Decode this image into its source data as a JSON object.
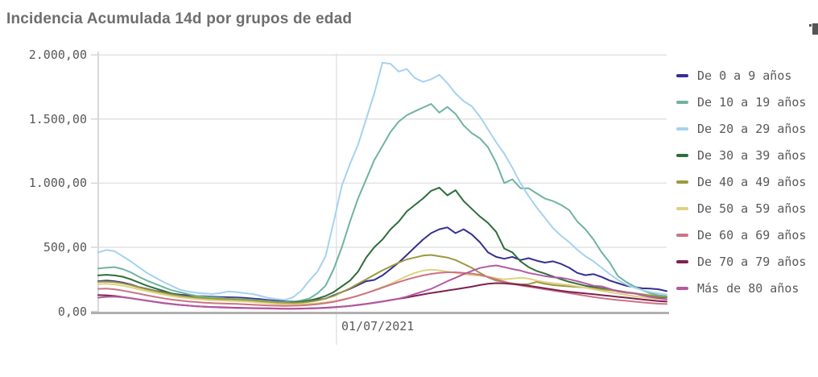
{
  "title": "Incidencia Acumulada 14d por grupos de edad",
  "toolbar": {
    "overflow_icon": "chart-options-icon"
  },
  "colors": {
    "title_text": "#6e6e6e",
    "axis_text": "#595959",
    "grid_line": "#e1e1e1",
    "axis_line": "#d8d8d8",
    "baseline": "#b0b0b0",
    "background": "#ffffff"
  },
  "chart_data": {
    "type": "line",
    "title": "Incidencia Acumulada 14d por grupos de edad",
    "xlabel": "",
    "ylabel": "",
    "ylim": [
      0,
      2000
    ],
    "grid": true,
    "legend_position": "right",
    "y_ticks": [
      {
        "label": "2.000,00",
        "value": 2000
      },
      {
        "label": "1.500,00",
        "value": 1500
      },
      {
        "label": "1.000,00",
        "value": 1000
      },
      {
        "label": "500,00",
        "value": 500
      },
      {
        "label": "0,00",
        "value": 0
      }
    ],
    "x_axis": {
      "tick_label": "01/07/2021",
      "tick_fraction": 0.419
    },
    "x_tick_labels": [
      "01/07/2021"
    ],
    "series": [
      {
        "name": "De 0 a 9 años",
        "color": "#352f8f",
        "values": [
          235,
          240,
          235,
          225,
          210,
          190,
          175,
          160,
          150,
          140,
          130,
          125,
          120,
          118,
          115,
          112,
          110,
          108,
          105,
          100,
          95,
          88,
          82,
          78,
          76,
          78,
          82,
          90,
          100,
          125,
          150,
          175,
          205,
          235,
          245,
          280,
          330,
          380,
          440,
          500,
          560,
          610,
          640,
          655,
          610,
          640,
          600,
          540,
          460,
          425,
          410,
          425,
          400,
          415,
          395,
          380,
          390,
          370,
          340,
          300,
          282,
          290,
          268,
          240,
          220,
          200,
          190,
          180,
          178,
          172,
          158
        ]
      },
      {
        "name": "De 10 a 19 años",
        "color": "#6fb3a2",
        "values": [
          335,
          340,
          345,
          330,
          305,
          270,
          240,
          215,
          190,
          165,
          150,
          135,
          122,
          115,
          110,
          105,
          100,
          100,
          95,
          90,
          85,
          80,
          75,
          72,
          75,
          85,
          100,
          140,
          200,
          330,
          500,
          700,
          880,
          1030,
          1180,
          1290,
          1400,
          1480,
          1530,
          1560,
          1590,
          1618,
          1550,
          1595,
          1540,
          1450,
          1390,
          1350,
          1280,
          1160,
          1000,
          1030,
          960,
          960,
          920,
          880,
          860,
          830,
          790,
          700,
          640,
          560,
          460,
          380,
          275,
          230,
          195,
          165,
          140,
          125,
          118
        ]
      },
      {
        "name": "De 20 a 29 años",
        "color": "#a5d2ee",
        "values": [
          460,
          478,
          470,
          430,
          390,
          345,
          300,
          265,
          230,
          200,
          170,
          155,
          145,
          140,
          135,
          142,
          155,
          150,
          142,
          135,
          120,
          105,
          95,
          90,
          110,
          160,
          240,
          310,
          430,
          700,
          980,
          1150,
          1300,
          1500,
          1700,
          1940,
          1930,
          1870,
          1890,
          1820,
          1790,
          1810,
          1845,
          1780,
          1700,
          1640,
          1600,
          1520,
          1420,
          1320,
          1230,
          1120,
          1000,
          900,
          810,
          730,
          650,
          590,
          540,
          480,
          430,
          390,
          340,
          290,
          245,
          210,
          185,
          165,
          150,
          140,
          130
        ]
      },
      {
        "name": "De 30 a 39 años",
        "color": "#2e6e3a",
        "values": [
          280,
          285,
          280,
          270,
          250,
          225,
          200,
          180,
          160,
          140,
          125,
          115,
          105,
          100,
          95,
          95,
          90,
          90,
          85,
          80,
          75,
          70,
          68,
          65,
          70,
          75,
          85,
          100,
          120,
          150,
          195,
          240,
          310,
          420,
          500,
          560,
          640,
          700,
          780,
          830,
          880,
          940,
          965,
          905,
          945,
          860,
          800,
          740,
          690,
          620,
          490,
          460,
          390,
          345,
          315,
          295,
          272,
          250,
          230,
          215,
          200,
          190,
          180,
          170,
          160,
          150,
          140,
          130,
          120,
          112,
          108
        ]
      },
      {
        "name": "De 40 a 49 años",
        "color": "#9a993f",
        "values": [
          230,
          232,
          228,
          218,
          205,
          188,
          172,
          158,
          145,
          132,
          122,
          115,
          110,
          105,
          100,
          98,
          95,
          92,
          90,
          85,
          80,
          75,
          70,
          66,
          65,
          68,
          75,
          85,
          100,
          120,
          150,
          180,
          215,
          250,
          285,
          320,
          350,
          380,
          405,
          420,
          435,
          440,
          430,
          420,
          400,
          370,
          340,
          300,
          265,
          240,
          228,
          218,
          210,
          212,
          230,
          215,
          205,
          200,
          195,
          190,
          185,
          180,
          172,
          165,
          158,
          150,
          142,
          133,
          125,
          118,
          112
        ]
      },
      {
        "name": "De 50 a 59 años",
        "color": "#ded283",
        "values": [
          212,
          215,
          210,
          200,
          188,
          172,
          158,
          145,
          132,
          120,
          110,
          103,
          97,
          92,
          88,
          85,
          82,
          80,
          77,
          73,
          68,
          63,
          58,
          55,
          54,
          55,
          58,
          63,
          70,
          80,
          92,
          105,
          122,
          142,
          165,
          190,
          215,
          245,
          275,
          300,
          318,
          325,
          320,
          310,
          300,
          290,
          283,
          278,
          272,
          258,
          250,
          255,
          262,
          255,
          240,
          228,
          220,
          212,
          205,
          195,
          185,
          172,
          160,
          148,
          138,
          128,
          118,
          110,
          103,
          97,
          92
        ]
      },
      {
        "name": "De 60 a 69 años",
        "color": "#cd7386",
        "values": [
          175,
          178,
          172,
          162,
          150,
          138,
          125,
          113,
          102,
          92,
          85,
          78,
          73,
          68,
          65,
          62,
          60,
          58,
          55,
          52,
          49,
          46,
          44,
          43,
          44,
          46,
          50,
          56,
          64,
          74,
          88,
          104,
          122,
          142,
          163,
          185,
          207,
          228,
          248,
          265,
          280,
          292,
          300,
          305,
          305,
          300,
          295,
          285,
          268,
          250,
          232,
          215,
          202,
          192,
          182,
          172,
          162,
          152,
          142,
          132,
          122,
          112,
          103,
          95,
          88,
          82,
          76,
          70,
          65,
          60,
          57
        ]
      },
      {
        "name": "De 70 a 79 años",
        "color": "#7d2150",
        "values": [
          127,
          125,
          120,
          112,
          103,
          93,
          83,
          74,
          65,
          57,
          50,
          45,
          40,
          37,
          34,
          32,
          30,
          28,
          27,
          25,
          24,
          23,
          22,
          21,
          21,
          22,
          23,
          25,
          28,
          32,
          37,
          43,
          50,
          58,
          67,
          77,
          88,
          98,
          108,
          120,
          132,
          143,
          153,
          163,
          172,
          182,
          192,
          205,
          215,
          220,
          218,
          213,
          208,
          200,
          190,
          180,
          170,
          160,
          152,
          146,
          140,
          133,
          126,
          120,
          113,
          107,
          100,
          93,
          87,
          80,
          76
        ]
      },
      {
        "name": "Más de 80 años",
        "color": "#b459a3",
        "values": [
          107,
          113,
          115,
          110,
          102,
          93,
          84,
          75,
          66,
          58,
          51,
          45,
          40,
          36,
          33,
          30,
          28,
          26,
          25,
          24,
          23,
          22,
          21,
          20,
          20,
          21,
          22,
          24,
          27,
          31,
          36,
          42,
          49,
          57,
          66,
          76,
          87,
          99,
          115,
          135,
          155,
          175,
          205,
          235,
          262,
          290,
          315,
          338,
          350,
          358,
          345,
          330,
          318,
          300,
          288,
          275,
          265,
          262,
          250,
          235,
          218,
          200,
          195,
          175,
          155,
          145,
          140,
          125,
          112,
          102,
          94
        ]
      }
    ]
  }
}
